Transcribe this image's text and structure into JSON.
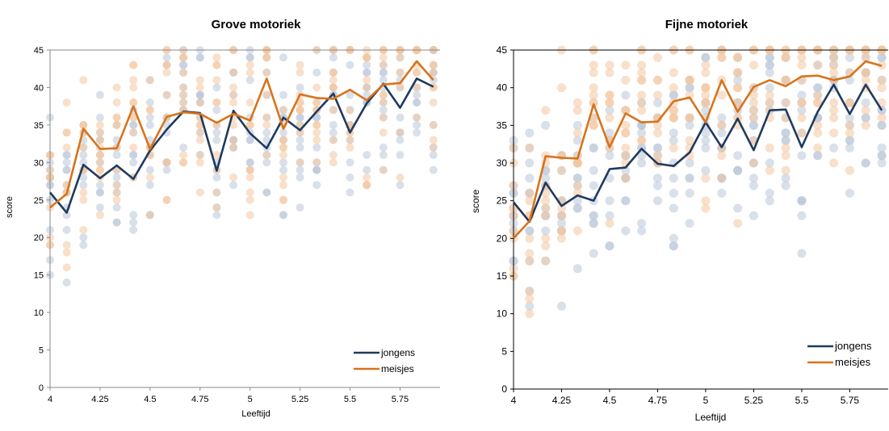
{
  "chart_data": [
    {
      "type": "line",
      "title": "Grove motoriek",
      "xlabel": "Leeftijd",
      "ylabel": "score",
      "xlim": [
        4,
        5.95
      ],
      "ylim": [
        0,
        45
      ],
      "xticks": [
        "4",
        "4.25",
        "4.5",
        "4.75",
        "5",
        "5.25",
        "5.5",
        "5.75"
      ],
      "yticks": [
        "0",
        "5",
        "10",
        "15",
        "20",
        "25",
        "30",
        "35",
        "40",
        "45"
      ],
      "grid": false,
      "legend_position": "bottom-right",
      "colors": {
        "jongens": "#1f3a5f",
        "meisjes": "#d8731c",
        "dots_blue": "#b9c6d8",
        "dots_orange": "#f3c7a1",
        "axis": "#8a8a8a"
      },
      "x": [
        4.0,
        4.0833,
        4.1667,
        4.25,
        4.3333,
        4.4167,
        4.5,
        4.5833,
        4.6667,
        4.75,
        4.8333,
        4.9167,
        5.0,
        5.0833,
        5.1667,
        5.25,
        5.3333,
        5.4167,
        5.5,
        5.5833,
        5.6667,
        5.75,
        5.8333,
        5.9167
      ],
      "series": [
        {
          "name": "jongens",
          "values": [
            26.0,
            23.3,
            29.7,
            27.9,
            29.6,
            27.8,
            31.6,
            34.4,
            36.8,
            36.6,
            28.9,
            36.9,
            33.9,
            31.9,
            36.0,
            34.3,
            36.8,
            39.2,
            34.0,
            37.9,
            40.5,
            37.3,
            41.2,
            40.1
          ]
        },
        {
          "name": "meisjes",
          "values": [
            24.0,
            25.8,
            34.5,
            31.8,
            31.9,
            37.5,
            31.8,
            36.1,
            36.7,
            36.5,
            35.3,
            36.5,
            35.6,
            41.2,
            34.5,
            39.1,
            38.6,
            38.5,
            39.7,
            38.3,
            40.4,
            40.6,
            43.5,
            41.0
          ]
        }
      ]
    },
    {
      "type": "line",
      "title": "Fijne motoriek",
      "xlabel": "Leeftijd",
      "ylabel": "score",
      "xlim": [
        4,
        5.95
      ],
      "ylim": [
        0,
        45
      ],
      "xticks": [
        "4",
        "4.25",
        "4.5",
        "4.75",
        "5",
        "5.25",
        "5.5",
        "5.75"
      ],
      "yticks": [
        "0",
        "5",
        "10",
        "15",
        "20",
        "25",
        "30",
        "35",
        "40",
        "45"
      ],
      "grid": false,
      "legend_position": "bottom-right",
      "colors": {
        "jongens": "#1f3a5f",
        "meisjes": "#d8731c",
        "dots_blue": "#b9c6d8",
        "dots_orange": "#f3c7a1",
        "axis": "#000000"
      },
      "x": [
        4.0,
        4.0833,
        4.1667,
        4.25,
        4.3333,
        4.4167,
        4.5,
        4.5833,
        4.6667,
        4.75,
        4.8333,
        4.9167,
        5.0,
        5.0833,
        5.1667,
        5.25,
        5.3333,
        5.4167,
        5.5,
        5.5833,
        5.6667,
        5.75,
        5.8333,
        5.9167
      ],
      "series": [
        {
          "name": "jongens",
          "values": [
            24.8,
            22.2,
            27.4,
            24.3,
            25.7,
            25.0,
            29.2,
            29.4,
            31.9,
            29.9,
            29.6,
            31.4,
            35.4,
            32.1,
            35.9,
            31.7,
            37.0,
            37.1,
            32.1,
            36.8,
            40.4,
            36.5,
            40.4,
            37.0
          ]
        },
        {
          "name": "meisjes",
          "values": [
            20.0,
            22.3,
            30.9,
            30.7,
            30.6,
            37.8,
            32.1,
            36.6,
            35.4,
            35.5,
            38.2,
            38.7,
            35.4,
            41.0,
            36.8,
            40.1,
            41.0,
            40.2,
            41.5,
            41.6,
            41.0,
            41.5,
            43.5,
            42.9
          ]
        }
      ]
    }
  ]
}
